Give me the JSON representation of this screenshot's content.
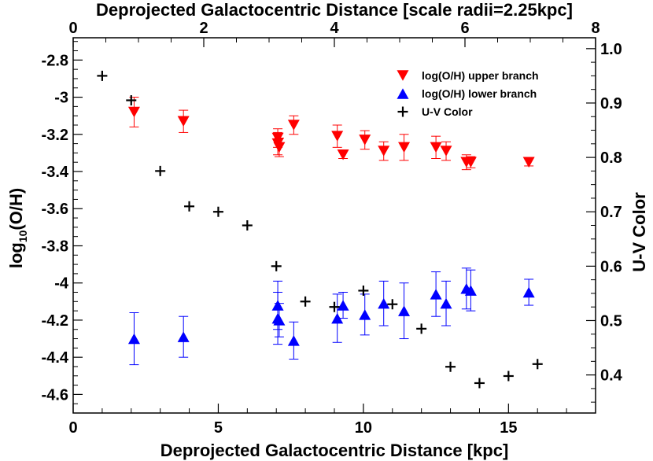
{
  "chart_data": {
    "type": "scatter",
    "xlabel": "Deprojected Galactocentric Distance [kpc]",
    "x2label": "Deprojected Galactocentric Distance [scale radii=2.25kpc]",
    "ylabel_main": "log",
    "ylabel_sub": "10",
    "ylabel_tail": "(O/H)",
    "y2label": "U-V Color",
    "xlim": [
      0,
      18
    ],
    "ylim": [
      -4.7,
      -2.68
    ],
    "x2lim": [
      0,
      8
    ],
    "y2lim": [
      0.33,
      1.02
    ],
    "xticks": [
      0,
      5,
      10,
      15
    ],
    "xtick_labels": [
      "0",
      "5",
      "10",
      "15"
    ],
    "x2ticks": [
      0,
      2,
      4,
      6,
      8
    ],
    "x2tick_labels": [
      "0",
      "2",
      "4",
      "6",
      "8"
    ],
    "yticks": [
      -2.8,
      -3.0,
      -3.2,
      -3.4,
      -3.6,
      -3.8,
      -4.0,
      -4.2,
      -4.4,
      -4.6
    ],
    "ytick_labels": [
      "-2.8",
      "-3",
      "-3.2",
      "-3.4",
      "-3.6",
      "-3.8",
      "-4",
      "-4.2",
      "-4.4",
      "-4.6"
    ],
    "y2ticks": [
      1.0,
      0.9,
      0.8,
      0.7,
      0.6,
      0.5,
      0.4
    ],
    "y2tick_labels": [
      "1.0",
      "0.9",
      "0.8",
      "0.7",
      "0.6",
      "0.5",
      "0.4"
    ],
    "series": [
      {
        "name": "log(O/H) upper branch",
        "marker": "triangle-down",
        "color": "#ff0000",
        "axis": "left",
        "points": [
          {
            "x": 2.1,
            "y": -3.08,
            "err": 0.08
          },
          {
            "x": 3.8,
            "y": -3.13,
            "err": 0.06
          },
          {
            "x": 7.05,
            "y": -3.22,
            "err": 0.05
          },
          {
            "x": 7.05,
            "y": -3.25,
            "err": 0.06
          },
          {
            "x": 7.1,
            "y": -3.27,
            "err": 0.05
          },
          {
            "x": 7.6,
            "y": -3.15,
            "err": 0.05
          },
          {
            "x": 9.1,
            "y": -3.21,
            "err": 0.06
          },
          {
            "x": 9.3,
            "y": -3.31,
            "err": 0.02
          },
          {
            "x": 10.05,
            "y": -3.23,
            "err": 0.05
          },
          {
            "x": 10.7,
            "y": -3.29,
            "err": 0.05
          },
          {
            "x": 11.4,
            "y": -3.27,
            "err": 0.07
          },
          {
            "x": 12.5,
            "y": -3.27,
            "err": 0.06
          },
          {
            "x": 12.85,
            "y": -3.29,
            "err": 0.05
          },
          {
            "x": 13.55,
            "y": -3.35,
            "err": 0.04
          },
          {
            "x": 13.7,
            "y": -3.35,
            "err": 0.03
          },
          {
            "x": 15.7,
            "y": -3.35,
            "err": 0.02
          }
        ]
      },
      {
        "name": "log(O/H) lower branch",
        "marker": "triangle-up",
        "color": "#0000ff",
        "axis": "left",
        "points": [
          {
            "x": 2.1,
            "y": -4.3,
            "err": 0.14
          },
          {
            "x": 3.8,
            "y": -4.29,
            "err": 0.11
          },
          {
            "x": 7.05,
            "y": -4.12,
            "err": 0.13
          },
          {
            "x": 7.05,
            "y": -4.19,
            "err": 0.14
          },
          {
            "x": 7.1,
            "y": -4.2,
            "err": 0.09
          },
          {
            "x": 7.6,
            "y": -4.31,
            "err": 0.1
          },
          {
            "x": 9.1,
            "y": -4.19,
            "err": 0.13
          },
          {
            "x": 9.3,
            "y": -4.12,
            "err": 0.07
          },
          {
            "x": 10.05,
            "y": -4.17,
            "err": 0.11
          },
          {
            "x": 10.7,
            "y": -4.11,
            "err": 0.12
          },
          {
            "x": 11.4,
            "y": -4.15,
            "err": 0.15
          },
          {
            "x": 12.5,
            "y": -4.06,
            "err": 0.12
          },
          {
            "x": 12.85,
            "y": -4.11,
            "err": 0.12
          },
          {
            "x": 13.55,
            "y": -4.03,
            "err": 0.11
          },
          {
            "x": 13.7,
            "y": -4.04,
            "err": 0.11
          },
          {
            "x": 15.7,
            "y": -4.05,
            "err": 0.07
          }
        ]
      },
      {
        "name": "U-V Color",
        "marker": "plus",
        "color": "#000000",
        "axis": "right",
        "points": [
          {
            "x": 1.0,
            "y": 0.95
          },
          {
            "x": 2.0,
            "y": 0.905
          },
          {
            "x": 3.0,
            "y": 0.775
          },
          {
            "x": 4.0,
            "y": 0.71
          },
          {
            "x": 5.0,
            "y": 0.7
          },
          {
            "x": 6.0,
            "y": 0.675
          },
          {
            "x": 7.0,
            "y": 0.6
          },
          {
            "x": 8.0,
            "y": 0.535
          },
          {
            "x": 9.0,
            "y": 0.525
          },
          {
            "x": 10.0,
            "y": 0.555
          },
          {
            "x": 11.0,
            "y": 0.53
          },
          {
            "x": 12.0,
            "y": 0.485
          },
          {
            "x": 13.0,
            "y": 0.415
          },
          {
            "x": 14.0,
            "y": 0.385
          },
          {
            "x": 15.0,
            "y": 0.398
          },
          {
            "x": 16.0,
            "y": 0.42
          }
        ]
      }
    ]
  }
}
